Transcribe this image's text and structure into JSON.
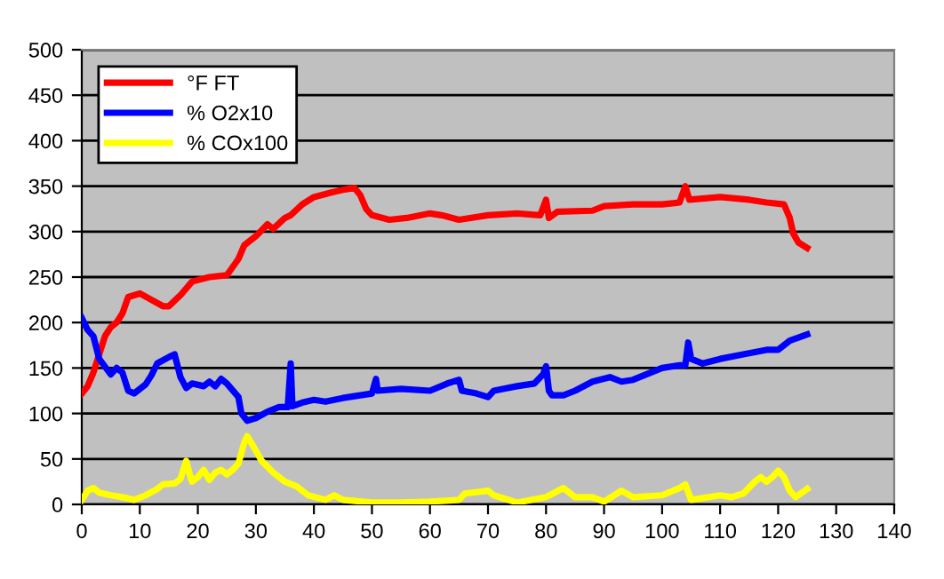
{
  "chart_data": {
    "type": "line",
    "xlim": [
      0,
      140
    ],
    "ylim": [
      0,
      500
    ],
    "xticks": [
      0,
      10,
      20,
      30,
      40,
      50,
      60,
      70,
      80,
      90,
      100,
      110,
      120,
      130,
      140
    ],
    "yticks": [
      0,
      50,
      100,
      150,
      200,
      250,
      300,
      350,
      400,
      450,
      500
    ],
    "grid": "y",
    "legend": "top left",
    "marker": "none",
    "line_style": "solid",
    "series": [
      {
        "name": "°F FT",
        "color": "#ff0000",
        "x": [
          0,
          1,
          2,
          3,
          4,
          5,
          6,
          7,
          8,
          10,
          12,
          14,
          15,
          17,
          19,
          22,
          25,
          27,
          28,
          30,
          32,
          33,
          35,
          36,
          38,
          40,
          43,
          45,
          47,
          48,
          49,
          50,
          53,
          56,
          60,
          62,
          65,
          70,
          75,
          79,
          80,
          80.5,
          82,
          88,
          90,
          95,
          100,
          103,
          104,
          104.7,
          110,
          115,
          118,
          121,
          122,
          122.6,
          123.5,
          125
        ],
        "values": [
          122,
          130,
          145,
          165,
          185,
          195,
          200,
          210,
          228,
          232,
          225,
          218,
          218,
          230,
          245,
          250,
          252,
          270,
          285,
          295,
          308,
          303,
          315,
          318,
          330,
          338,
          343,
          346,
          348,
          340,
          325,
          318,
          313,
          315,
          320,
          318,
          313,
          318,
          320,
          318,
          335,
          315,
          322,
          323,
          328,
          330,
          330,
          332,
          350,
          335,
          338,
          335,
          332,
          330,
          315,
          298,
          288,
          282
        ]
      },
      {
        "name": "% O2x10",
        "color": "#0000ff",
        "x": [
          0,
          1,
          2,
          3,
          5,
          6,
          7,
          8,
          9,
          11,
          12,
          13,
          15,
          16,
          17,
          18,
          19,
          21,
          22,
          23,
          24,
          25,
          27,
          27.5,
          28.5,
          30,
          32,
          34,
          35.5,
          36,
          36.3,
          38,
          40,
          42,
          45,
          48,
          50,
          50.7,
          51,
          55,
          60,
          63,
          65,
          65.5,
          68,
          70,
          71,
          75,
          78,
          79.5,
          80,
          80.5,
          81,
          83,
          85,
          88,
          91,
          93,
          95,
          100,
          103,
          104,
          104.5,
          105,
          107,
          110,
          114,
          118,
          120,
          122,
          125
        ],
        "values": [
          205,
          192,
          185,
          160,
          143,
          150,
          145,
          125,
          122,
          132,
          142,
          155,
          162,
          165,
          140,
          128,
          133,
          130,
          135,
          130,
          138,
          133,
          118,
          100,
          92,
          95,
          102,
          107,
          107,
          155,
          108,
          112,
          115,
          113,
          117,
          120,
          122,
          138,
          125,
          127,
          125,
          133,
          137,
          125,
          122,
          118,
          125,
          130,
          133,
          143,
          152,
          125,
          120,
          120,
          125,
          135,
          140,
          135,
          137,
          150,
          153,
          153,
          178,
          160,
          155,
          160,
          165,
          170,
          170,
          180,
          187
        ]
      },
      {
        "name": "% COx100",
        "color": "#ffff00",
        "x": [
          0,
          1,
          2,
          3,
          5,
          7,
          9,
          11,
          13,
          14,
          16,
          17,
          18,
          18.5,
          19,
          20,
          21,
          22,
          23,
          24,
          25,
          26,
          27,
          28,
          28.5,
          29,
          31,
          33,
          35,
          37,
          39,
          42,
          43.5,
          45,
          50,
          55,
          60,
          65,
          66,
          70,
          71,
          75,
          80,
          83,
          85,
          88,
          90,
          93,
          95,
          100,
          103,
          104,
          105,
          110,
          112,
          114,
          116,
          117,
          118,
          119,
          120,
          121,
          122,
          123,
          125
        ],
        "values": [
          5,
          15,
          18,
          13,
          10,
          8,
          5,
          10,
          17,
          22,
          23,
          28,
          48,
          35,
          25,
          30,
          38,
          27,
          35,
          38,
          33,
          38,
          45,
          68,
          75,
          70,
          48,
          35,
          25,
          20,
          10,
          5,
          10,
          5,
          2,
          2,
          3,
          5,
          12,
          15,
          10,
          2,
          8,
          18,
          8,
          8,
          3,
          15,
          8,
          10,
          18,
          22,
          5,
          10,
          8,
          12,
          25,
          30,
          25,
          30,
          37,
          30,
          15,
          8,
          17
        ]
      }
    ]
  }
}
